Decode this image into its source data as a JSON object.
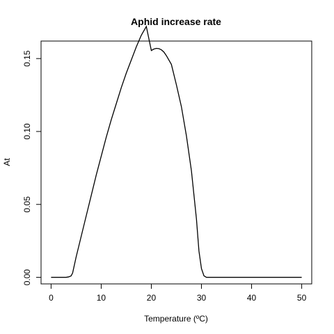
{
  "chart_data": {
    "type": "line",
    "title": "Aphid increase rate",
    "xlabel": "Temperature (ºC)",
    "ylabel": "At",
    "xlim": [
      -2,
      52
    ],
    "ylim": [
      -0.0045,
      0.162
    ],
    "xticks": [
      0,
      10,
      20,
      30,
      40,
      50
    ],
    "yticks": [
      0.0,
      0.05,
      0.1,
      0.15
    ],
    "ytick_labels": [
      "0.00",
      "0.05",
      "0.10",
      "0.15"
    ],
    "grid": false,
    "legend": "none",
    "line_color": "#000000",
    "series": [
      {
        "x": [
          0,
          1,
          2,
          3,
          3.5,
          4,
          4.3,
          5,
          6,
          7,
          8,
          9,
          10,
          11,
          12,
          13,
          14,
          15,
          16,
          17,
          18,
          19,
          20,
          20.5,
          21,
          21.5,
          22,
          22.5,
          23,
          24,
          25,
          26,
          27,
          28,
          29,
          29.5,
          30,
          30.5,
          31,
          32,
          35,
          40,
          45,
          50
        ],
        "y": [
          0.0,
          0.0,
          0.0,
          0.0,
          0.0003,
          0.001,
          0.003,
          0.014,
          0.028,
          0.042,
          0.056,
          0.07,
          0.083,
          0.096,
          0.108,
          0.119,
          0.13,
          0.14,
          0.149,
          0.158,
          0.166,
          0.172,
          0.1555,
          0.1565,
          0.157,
          0.1568,
          0.156,
          0.1545,
          0.152,
          0.146,
          0.132,
          0.117,
          0.097,
          0.073,
          0.04,
          0.018,
          0.006,
          0.001,
          0.0,
          0.0,
          0.0,
          0.0,
          0.0,
          0.0
        ]
      }
    ]
  }
}
